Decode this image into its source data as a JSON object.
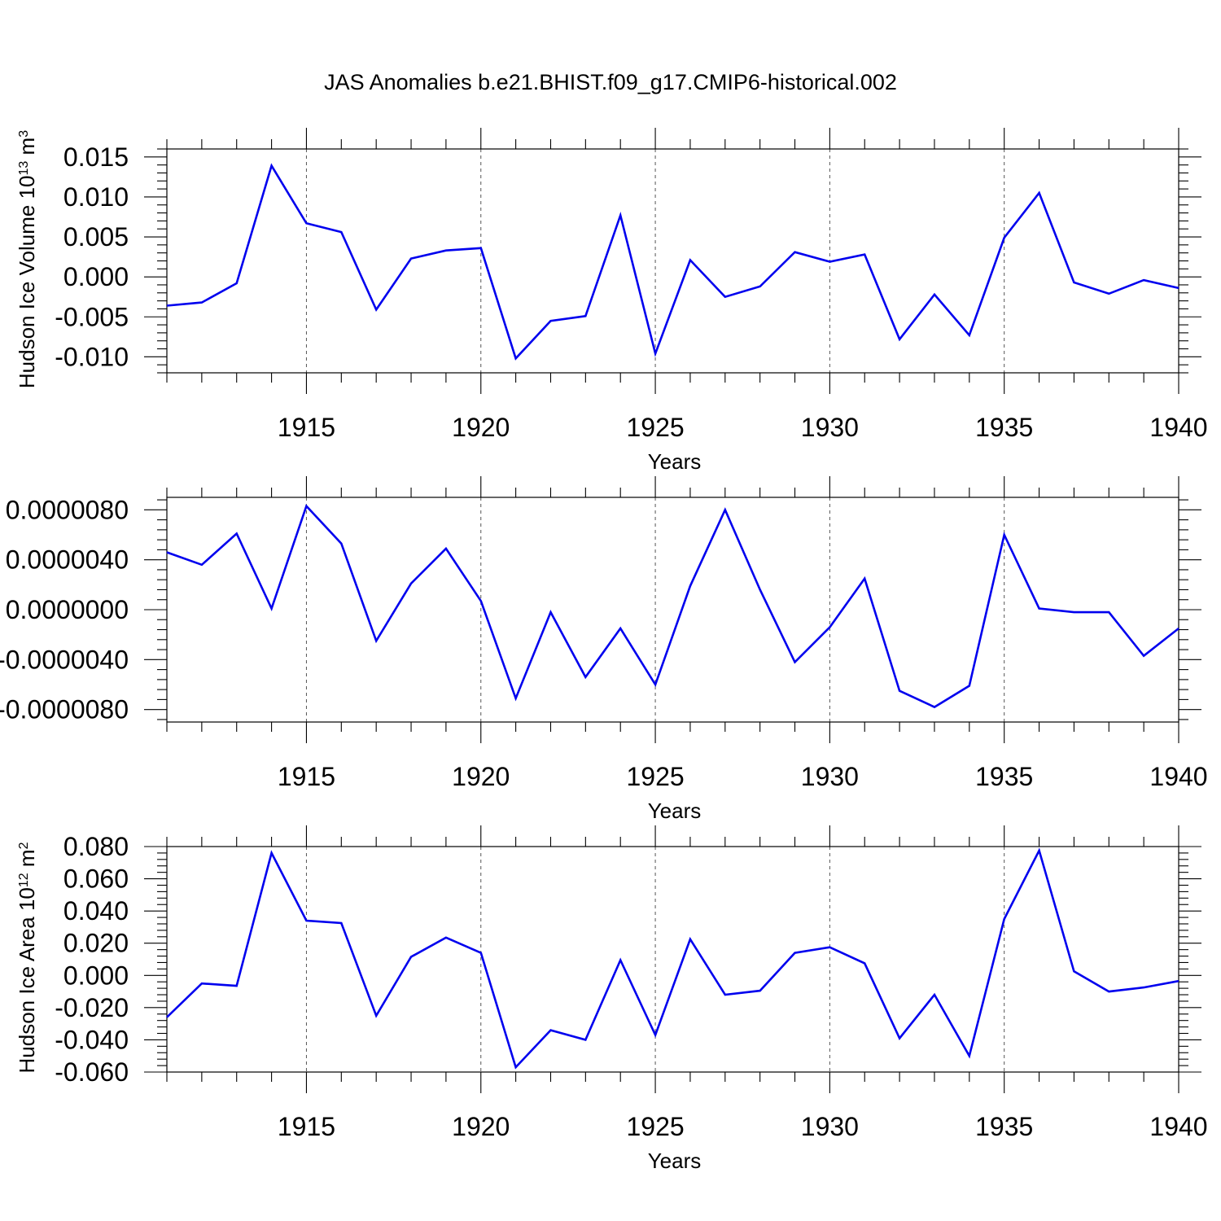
{
  "figure": {
    "title": "JAS Anomalies b.e21.BHIST.f09_g17.CMIP6-historical.002",
    "line_color": "#0000ee"
  },
  "chart_data": [
    {
      "type": "line",
      "title": "",
      "xlabel": "Years",
      "ylabel": "Hudson Ice Volume 10",
      "ylabel_sup1": "13",
      "ylabel_unit": " m",
      "ylabel_sup2": "3",
      "xlim": [
        1911,
        1940
      ],
      "ylim": [
        -0.012,
        0.016
      ],
      "x_ticks": [
        1915,
        1920,
        1925,
        1930,
        1935,
        1940
      ],
      "x_tick_labels": [
        "1915",
        "1920",
        "1925",
        "1930",
        "1935",
        "1940"
      ],
      "y_ticks": [
        -0.01,
        -0.005,
        0.0,
        0.005,
        0.01,
        0.015
      ],
      "y_tick_labels": [
        "-0.010",
        "-0.005",
        "0.000",
        "0.005",
        "0.010",
        "0.015"
      ],
      "grid": "vertical dashed at major x ticks",
      "x": [
        1911,
        1912,
        1913,
        1914,
        1915,
        1916,
        1917,
        1918,
        1919,
        1920,
        1921,
        1922,
        1923,
        1924,
        1925,
        1926,
        1927,
        1928,
        1929,
        1930,
        1931,
        1932,
        1933,
        1934,
        1935,
        1936,
        1937,
        1938,
        1939,
        1940
      ],
      "y": [
        -0.0036,
        -0.0032,
        -0.0008,
        0.0139,
        0.0067,
        0.0056,
        -0.0041,
        0.0023,
        0.0033,
        0.0036,
        -0.0102,
        -0.0055,
        -0.0049,
        0.0077,
        -0.0096,
        0.0021,
        -0.0025,
        -0.0012,
        0.0031,
        0.0019,
        0.0028,
        -0.0078,
        -0.0022,
        -0.0073,
        0.0049,
        0.0105,
        -0.0007,
        -0.0021,
        -0.0004,
        -0.0014
      ]
    },
    {
      "type": "line",
      "title": "",
      "xlabel": "Years",
      "ylabel": "",
      "ylabel_sup1": "",
      "ylabel_unit": "",
      "ylabel_sup2": "",
      "xlim": [
        1911,
        1940
      ],
      "ylim": [
        -9e-06,
        9e-06
      ],
      "x_ticks": [
        1915,
        1920,
        1925,
        1930,
        1935,
        1940
      ],
      "x_tick_labels": [
        "1915",
        "1920",
        "1925",
        "1930",
        "1935",
        "1940"
      ],
      "y_ticks": [
        -8e-06,
        -4e-06,
        0.0,
        4e-06,
        8e-06
      ],
      "y_tick_labels": [
        "-0.0000080",
        "-0.0000040",
        "0.0000000",
        "0.0000040",
        "0.0000080"
      ],
      "grid": "vertical dashed at major x ticks",
      "x": [
        1911,
        1912,
        1913,
        1914,
        1915,
        1916,
        1917,
        1918,
        1919,
        1920,
        1921,
        1922,
        1923,
        1924,
        1925,
        1926,
        1927,
        1928,
        1929,
        1930,
        1931,
        1932,
        1933,
        1934,
        1935,
        1936,
        1937,
        1938,
        1939,
        1940
      ],
      "y": [
        4.6e-06,
        3.6e-06,
        6.1e-06,
        1e-07,
        8.3e-06,
        5.3e-06,
        -2.5e-06,
        2.1e-06,
        4.9e-06,
        7e-07,
        -7.1e-06,
        -2e-07,
        -5.4e-06,
        -1.5e-06,
        -6e-06,
        1.9e-06,
        8e-06,
        1.6e-06,
        -4.2e-06,
        -1.4e-06,
        2.5e-06,
        -6.5e-06,
        -7.8e-06,
        -6.1e-06,
        6e-06,
        1e-07,
        -2e-07,
        -2e-07,
        -3.7e-06,
        -1.5e-06
      ]
    },
    {
      "type": "line",
      "title": "",
      "xlabel": "Years",
      "ylabel": "Hudson Ice Area 10",
      "ylabel_sup1": "12",
      "ylabel_unit": " m",
      "ylabel_sup2": "2",
      "xlim": [
        1911,
        1940
      ],
      "ylim": [
        -0.06,
        0.08
      ],
      "x_ticks": [
        1915,
        1920,
        1925,
        1930,
        1935,
        1940
      ],
      "x_tick_labels": [
        "1915",
        "1920",
        "1925",
        "1930",
        "1935",
        "1940"
      ],
      "y_ticks": [
        -0.06,
        -0.04,
        -0.02,
        0.0,
        0.02,
        0.04,
        0.06,
        0.08
      ],
      "y_tick_labels": [
        "-0.060",
        "-0.040",
        "-0.020",
        "0.000",
        "0.020",
        "0.040",
        "0.060",
        "0.080"
      ],
      "grid": "vertical dashed at major x ticks",
      "x": [
        1911,
        1912,
        1913,
        1914,
        1915,
        1916,
        1917,
        1918,
        1919,
        1920,
        1921,
        1922,
        1923,
        1924,
        1925,
        1926,
        1927,
        1928,
        1929,
        1930,
        1931,
        1932,
        1933,
        1934,
        1935,
        1936,
        1937,
        1938,
        1939,
        1940
      ],
      "y": [
        -0.026,
        -0.005,
        -0.0065,
        0.076,
        0.034,
        0.0325,
        -0.025,
        0.0115,
        0.0235,
        0.014,
        -0.057,
        -0.034,
        -0.04,
        0.0095,
        -0.037,
        0.0225,
        -0.012,
        -0.0095,
        0.014,
        0.0175,
        0.0075,
        -0.039,
        -0.012,
        -0.05,
        0.035,
        0.0775,
        0.0025,
        -0.01,
        -0.0075,
        -0.0035
      ]
    }
  ]
}
